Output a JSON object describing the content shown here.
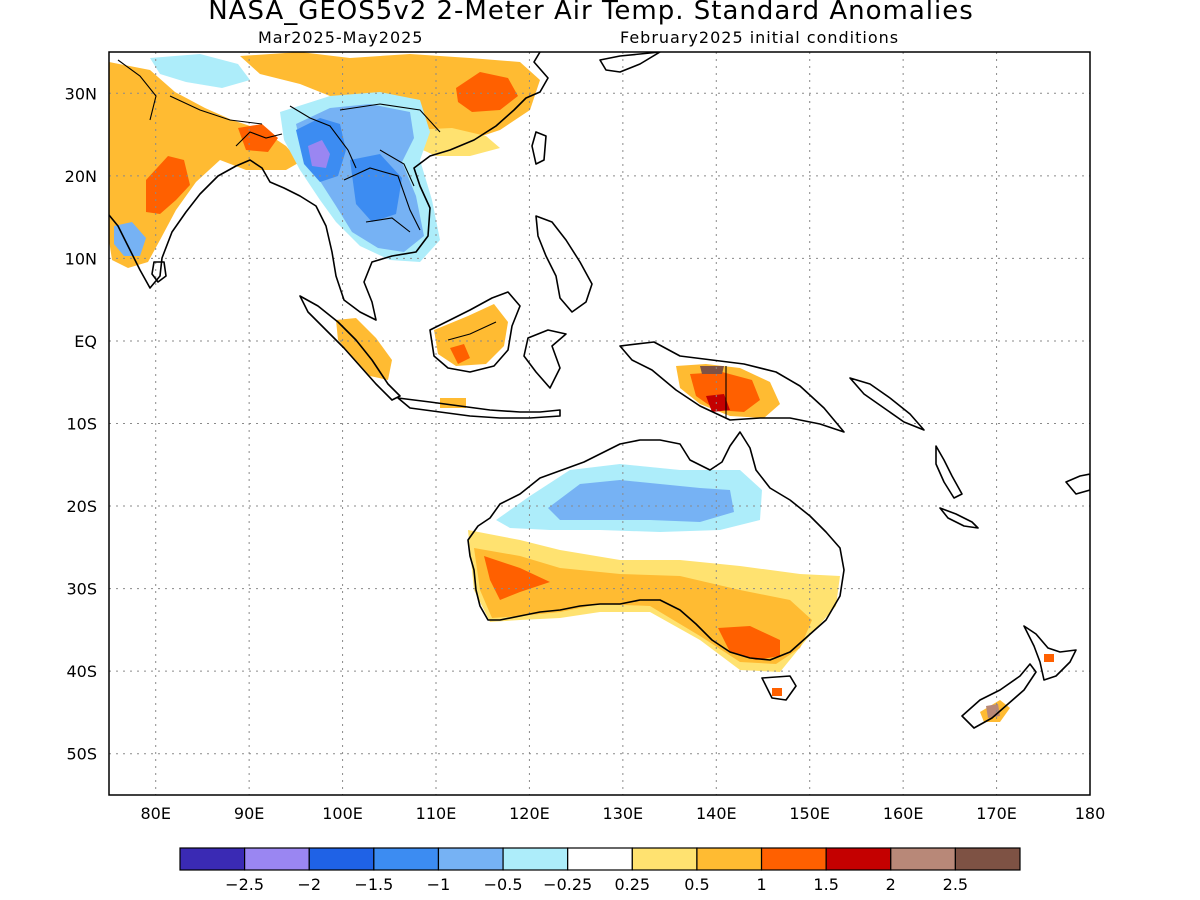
{
  "title": "NASA_GEOS5v2 2-Meter Air Temp. Standard Anomalies",
  "subtitle_left": "Mar2025-May2025",
  "subtitle_right": "February2025 initial conditions",
  "map": {
    "lon_range": [
      75,
      180
    ],
    "lat_range": [
      -55,
      35
    ],
    "lon_ticks": [
      {
        "value": 80,
        "label": "80E"
      },
      {
        "value": 90,
        "label": "90E"
      },
      {
        "value": 100,
        "label": "100E"
      },
      {
        "value": 110,
        "label": "110E"
      },
      {
        "value": 120,
        "label": "120E"
      },
      {
        "value": 130,
        "label": "130E"
      },
      {
        "value": 140,
        "label": "140E"
      },
      {
        "value": 150,
        "label": "150E"
      },
      {
        "value": 160,
        "label": "160E"
      },
      {
        "value": 170,
        "label": "170E"
      },
      {
        "value": 180,
        "label": "180"
      }
    ],
    "lat_ticks": [
      {
        "value": 30,
        "label": "30N"
      },
      {
        "value": 20,
        "label": "20N"
      },
      {
        "value": 10,
        "label": "10N"
      },
      {
        "value": 0,
        "label": "EQ"
      },
      {
        "value": -10,
        "label": "10S"
      },
      {
        "value": -20,
        "label": "20S"
      },
      {
        "value": -30,
        "label": "30S"
      },
      {
        "value": -40,
        "label": "40S"
      },
      {
        "value": -50,
        "label": "50S"
      }
    ],
    "grid": true
  },
  "colorbar": {
    "colors": [
      "#3a2ab4",
      "#9a86f2",
      "#1f62e6",
      "#3c8cf2",
      "#76b2f4",
      "#adedfa",
      "#ffffff",
      "#ffe270",
      "#ffbb32",
      "#ff6000",
      "#c40000",
      "#b88878",
      "#7e5244"
    ],
    "labels": [
      "-2.5",
      "-2",
      "-1.5",
      "-1",
      "-0.5",
      "-0.25",
      "0.25",
      "0.5",
      "1",
      "1.5",
      "2",
      "2.5"
    ]
  }
}
